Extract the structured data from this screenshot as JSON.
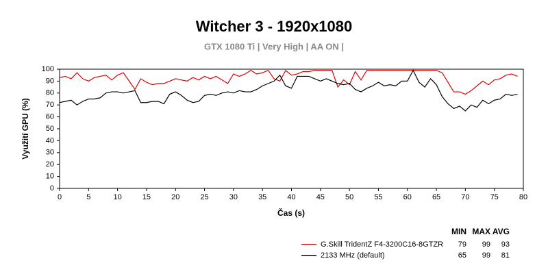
{
  "chart_data": {
    "type": "line",
    "title": "Witcher 3 - 1920x1080",
    "subtitle": "GTX 1080 Ti | Very High | AA ON |",
    "xlabel": "Čas (s)",
    "ylabel": "Využití GPU (%)",
    "x": [
      0,
      1,
      2,
      3,
      4,
      5,
      6,
      7,
      8,
      9,
      10,
      11,
      12,
      13,
      14,
      15,
      16,
      17,
      18,
      19,
      20,
      21,
      22,
      23,
      24,
      25,
      26,
      27,
      28,
      29,
      30,
      31,
      32,
      33,
      34,
      35,
      36,
      37,
      38,
      39,
      40,
      41,
      42,
      43,
      44,
      45,
      46,
      47,
      48,
      49,
      50,
      51,
      52,
      53,
      54,
      55,
      56,
      57,
      58,
      59,
      60,
      61,
      62,
      63,
      64,
      65,
      66,
      67,
      68,
      69,
      70,
      71,
      72,
      73,
      74,
      75,
      76,
      77,
      78,
      79
    ],
    "series": [
      {
        "name": "G.Skill TridentZ F4-3200C16-8GTZR",
        "color": "#e00000",
        "stats": [
          79,
          99,
          93
        ],
        "values": [
          93,
          94,
          92,
          97,
          92,
          90,
          93,
          94,
          95,
          91,
          95,
          97,
          90,
          83,
          92,
          89,
          87,
          88,
          88,
          90,
          92,
          91,
          90,
          93,
          91,
          94,
          92,
          94,
          91,
          88,
          96,
          94,
          96,
          99,
          96,
          97,
          99,
          92,
          90,
          99,
          95,
          96,
          98,
          98,
          99,
          99,
          99,
          99,
          85,
          91,
          87,
          98,
          91,
          99,
          99,
          99,
          99,
          99,
          99,
          99,
          99,
          99,
          99,
          99,
          99,
          99,
          97,
          89,
          81,
          81,
          79,
          82,
          86,
          90,
          87,
          91,
          92,
          95,
          96,
          94
        ]
      },
      {
        "name": "2133 MHz (default)",
        "color": "#000000",
        "stats": [
          65,
          99,
          81
        ],
        "values": [
          72,
          73,
          74,
          70,
          73,
          75,
          75,
          76,
          80,
          81,
          81,
          80,
          81,
          82,
          72,
          72,
          73,
          73,
          71,
          79,
          81,
          78,
          74,
          72,
          73,
          78,
          79,
          78,
          80,
          81,
          80,
          82,
          81,
          81,
          83,
          86,
          88,
          90,
          95,
          86,
          84,
          94,
          94,
          94,
          92,
          90,
          92,
          90,
          88,
          87,
          88,
          83,
          81,
          84,
          86,
          89,
          86,
          87,
          86,
          90,
          90,
          99,
          89,
          85,
          92,
          87,
          77,
          71,
          67,
          69,
          65,
          70,
          68,
          74,
          71,
          74,
          75,
          79,
          78,
          79
        ]
      }
    ],
    "stats_header": [
      "MIN",
      "MAX",
      "AVG"
    ],
    "xlim": [
      0,
      80
    ],
    "xticks": [
      0,
      5,
      10,
      15,
      20,
      25,
      30,
      35,
      40,
      45,
      50,
      55,
      60,
      65,
      70,
      75,
      80
    ],
    "ylim": [
      0,
      100
    ],
    "yticks": [
      0,
      10,
      20,
      30,
      40,
      50,
      60,
      70,
      80,
      90,
      100
    ],
    "grid": false
  }
}
